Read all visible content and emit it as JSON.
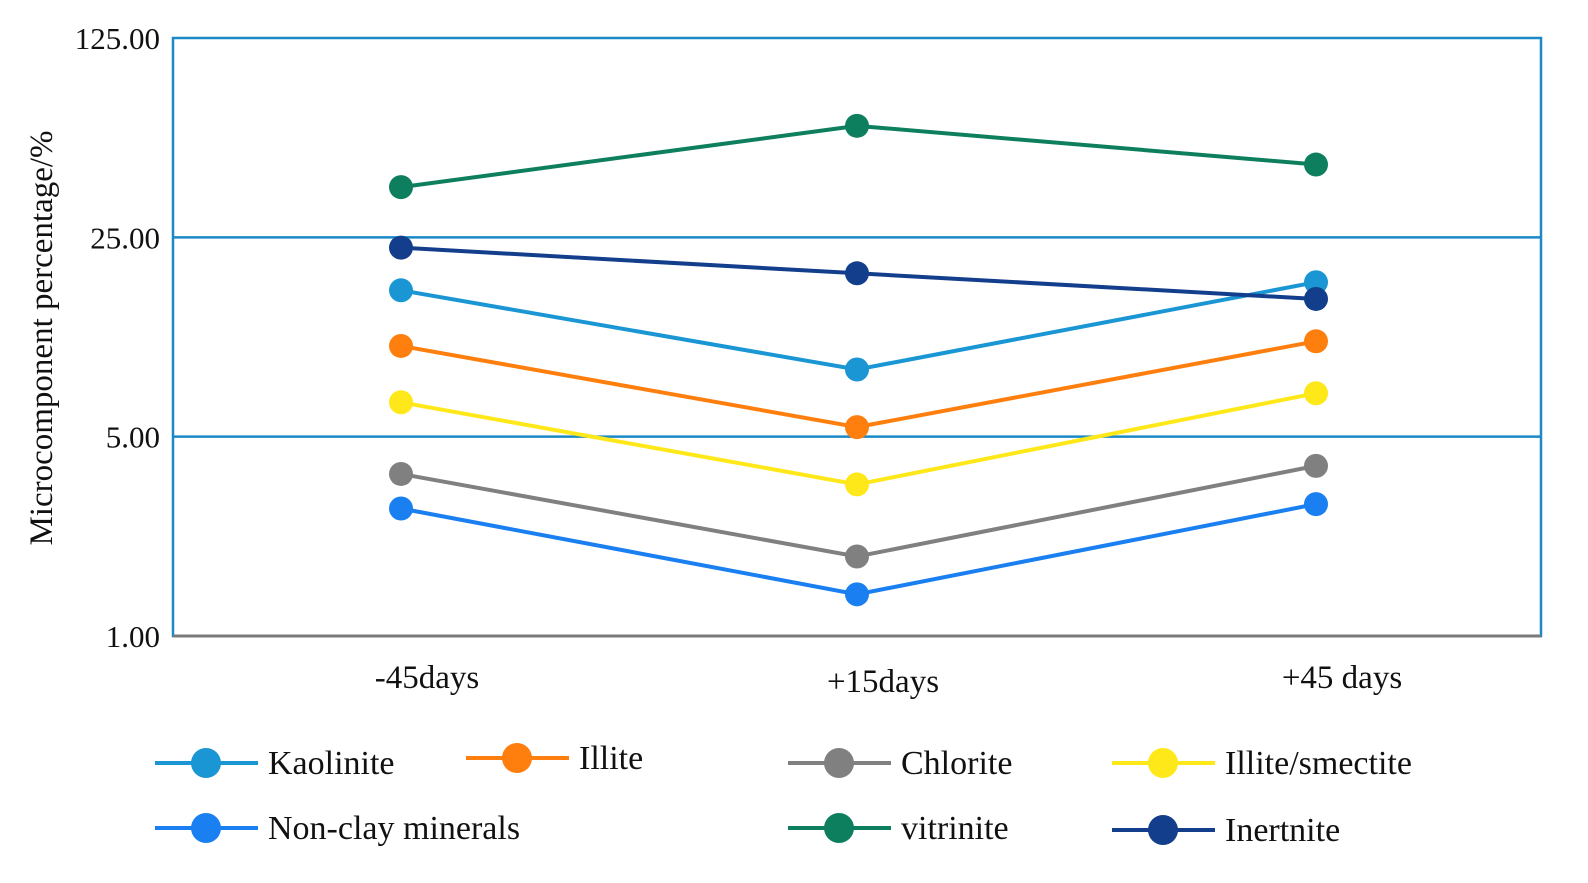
{
  "chart_data": {
    "type": "line",
    "title": "",
    "xlabel": "",
    "ylabel": "Microcomponent percentage/%",
    "yscale": "log",
    "ylim": [
      1,
      125
    ],
    "yticks": [
      1,
      5,
      25,
      125
    ],
    "ytick_labels": [
      "1.00",
      "5.00",
      "25.00",
      "125.00"
    ],
    "categories": [
      "-45days",
      "+15days",
      "+45 days"
    ],
    "series": [
      {
        "name": "Kaolinite",
        "color": "#1a96d4",
        "values": [
          16.3,
          8.6,
          17.4
        ]
      },
      {
        "name": "Illite",
        "color": "#ff7f0e",
        "values": [
          10.4,
          5.4,
          10.8
        ]
      },
      {
        "name": "Chlorite",
        "color": "#808080",
        "values": [
          3.7,
          1.9,
          3.95
        ]
      },
      {
        "name": "Illite/smectite",
        "color": "#ffe81a",
        "values": [
          6.6,
          3.4,
          7.1
        ]
      },
      {
        "name": "Non-clay minerals",
        "color": "#1a7ff0",
        "values": [
          2.8,
          1.4,
          2.9
        ]
      },
      {
        "name": "vitrinite",
        "color": "#0e7f5e",
        "values": [
          37.5,
          61.5,
          45.0
        ]
      },
      {
        "name": "Inertnite",
        "color": "#123e8c",
        "values": [
          23.0,
          18.7,
          15.2
        ]
      }
    ],
    "legend_position": "bottom"
  }
}
